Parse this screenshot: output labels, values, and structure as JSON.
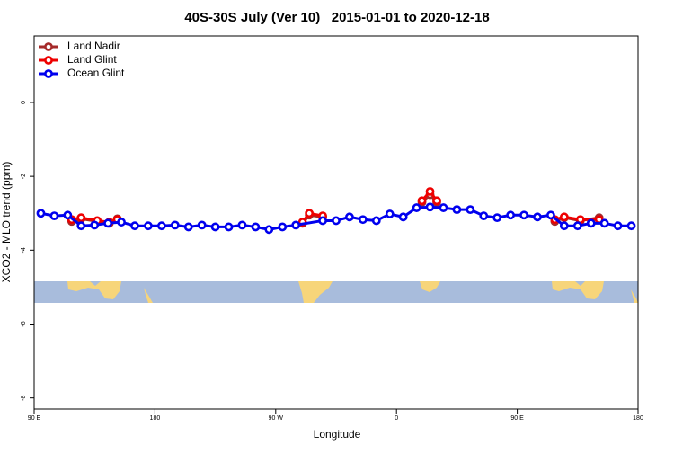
{
  "chart_data": {
    "type": "line",
    "title": "40S-30S July (Ver 10)   2015-01-01 to 2020-12-18",
    "x_label": "Longitude",
    "y_label": "XCO2 - MLO trend (ppm)",
    "xlim": [
      90,
      540
    ],
    "ylim": [
      -8.3,
      1.8
    ],
    "xticks": [
      {
        "value": 90,
        "label": "90 E"
      },
      180,
      {
        "value": 270,
        "label": "90 W"
      },
      {
        "value": 360,
        "label": "0"
      },
      {
        "value": 450,
        "label": "90 E"
      },
      180
    ],
    "yticks": [
      0,
      -2,
      -4,
      -6,
      -8
    ],
    "legend": "top-left",
    "series": [
      {
        "name": "Land Nadir",
        "color": "#a52a2a",
        "x": [
          118,
          125,
          137,
          146,
          152,
          220,
          290,
          295,
          305,
          340,
          379,
          385,
          390,
          460,
          478,
          485,
          497,
          511
        ],
        "values": [
          -3.22,
          -3.15,
          -3.22,
          -3.27,
          -3.15,
          null,
          -3.27,
          -3.05,
          -3.1,
          null,
          -2.7,
          -2.5,
          -2.7,
          null,
          -3.22,
          -3.12,
          -3.2,
          -3.12
        ]
      },
      {
        "name": "Land Glint",
        "color": "#ee0000",
        "x": [
          118,
          125,
          137,
          146,
          152,
          220,
          290,
          295,
          305,
          340,
          379,
          385,
          390,
          460,
          478,
          485,
          497,
          511
        ],
        "values": [
          -3.17,
          -3.12,
          -3.2,
          -3.24,
          -3.17,
          null,
          -3.24,
          -3.0,
          -3.07,
          null,
          -2.66,
          -2.41,
          -2.66,
          null,
          -3.17,
          -3.1,
          -3.17,
          -3.17
        ]
      },
      {
        "name": "Ocean Glint",
        "color": "#0000ee",
        "x": [
          95,
          105,
          115,
          125,
          135,
          145,
          155,
          165,
          175,
          185,
          195,
          205,
          215,
          225,
          235,
          245,
          255,
          265,
          275,
          285,
          305,
          315,
          325,
          335,
          345,
          355,
          365,
          375,
          385,
          395,
          405,
          415,
          425,
          435,
          445,
          455,
          465,
          475,
          485,
          495,
          505,
          515,
          525,
          535
        ],
        "values": [
          -3.0,
          -3.07,
          -3.05,
          -3.34,
          -3.32,
          -3.27,
          -3.24,
          -3.34,
          -3.34,
          -3.34,
          -3.32,
          -3.37,
          -3.32,
          -3.37,
          -3.37,
          -3.32,
          -3.37,
          -3.44,
          -3.37,
          -3.32,
          -3.2,
          -3.2,
          -3.1,
          -3.17,
          -3.2,
          -3.02,
          -3.1,
          -2.85,
          -2.83,
          -2.85,
          -2.9,
          -2.9,
          -3.07,
          -3.12,
          -3.05,
          -3.05,
          -3.1,
          -3.05,
          -3.34,
          -3.34,
          -3.27,
          -3.27,
          -3.34,
          -3.34
        ]
      }
    ]
  }
}
